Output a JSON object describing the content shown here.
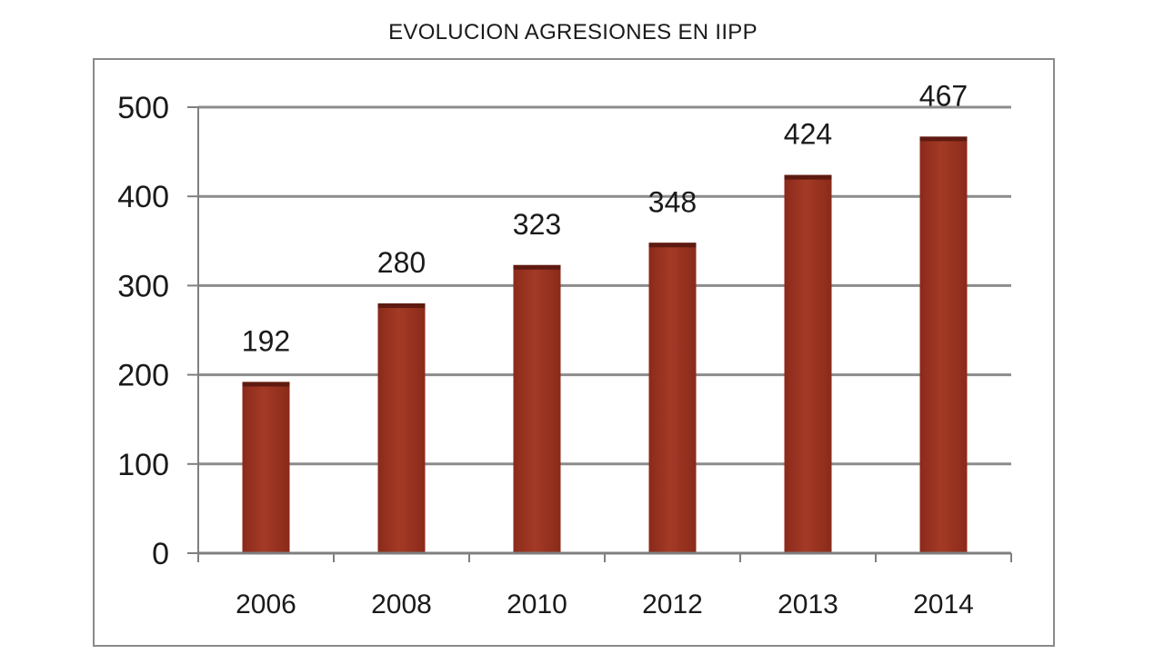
{
  "chart_data": {
    "type": "bar",
    "title": "EVOLUCION AGRESIONES EN IIPP",
    "categories": [
      "2006",
      "2008",
      "2010",
      "2012",
      "2013",
      "2014"
    ],
    "values": [
      192,
      280,
      323,
      348,
      424,
      467
    ],
    "data_labels": [
      "192",
      "280",
      "323",
      "348",
      "424",
      "467"
    ],
    "y_ticks": [
      0,
      100,
      200,
      300,
      400,
      500
    ],
    "ylim": [
      0,
      500
    ],
    "grid": true,
    "legend": "none",
    "colors": {
      "bar": "#8b2a1a",
      "bar_highlight": "#a33a26",
      "bar_top": "#5e1a10",
      "grid": "#8c8c8c",
      "axis": "#7f7f7f",
      "text": "#1a1a1a"
    }
  }
}
